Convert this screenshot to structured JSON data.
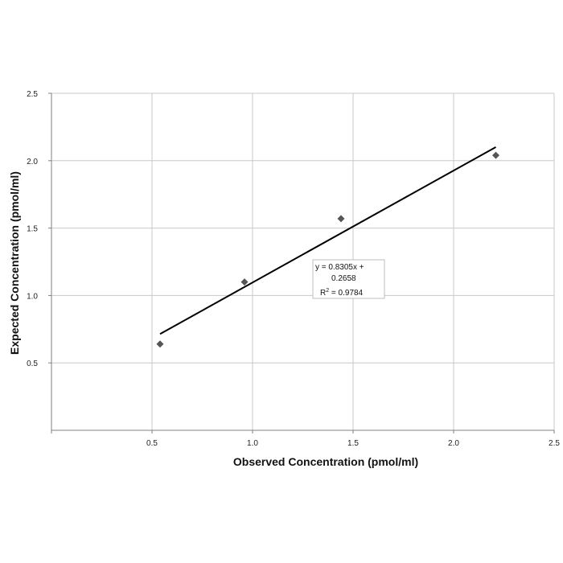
{
  "chart_data": {
    "type": "scatter",
    "title": "",
    "xlabel": "Observed Concentration (pmol/ml)",
    "ylabel": "Expected Concentration (pmol/ml)",
    "xlim": [
      0,
      2.5
    ],
    "ylim": [
      0,
      2.5
    ],
    "x_ticks": [
      "0.5",
      "1.0",
      "1.5",
      "2.0",
      "2.5"
    ],
    "y_ticks": [
      "0.5",
      "1.0",
      "1.5",
      "2.0",
      "2.5"
    ],
    "grid": true,
    "marker": "diamond",
    "colors": {
      "points": "#555555",
      "trendline": "#000000",
      "grid": "#c8c8c8",
      "axis": "#808080"
    },
    "points": [
      {
        "x": 0.54,
        "y": 0.64
      },
      {
        "x": 0.96,
        "y": 1.1
      },
      {
        "x": 1.44,
        "y": 1.57
      },
      {
        "x": 2.21,
        "y": 2.04
      }
    ],
    "trendline": {
      "slope": 0.8305,
      "intercept": 0.2658,
      "x_range": [
        0.54,
        2.21
      ],
      "equation_line1": "y = 0.8305x +",
      "equation_line2": "0.2658",
      "r2_prefix": "R",
      "r2_sup": "2",
      "r2_suffix": " = 0.9784"
    }
  }
}
